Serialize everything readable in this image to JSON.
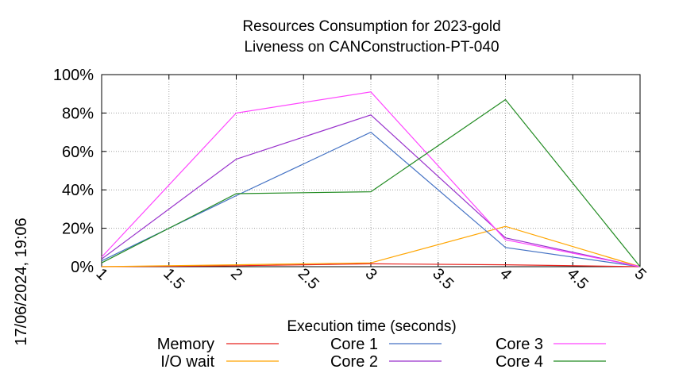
{
  "chart_data": {
    "type": "line",
    "title_lines": [
      "Resources Consumption for 2023-gold",
      "Liveness on CANConstruction-PT-040"
    ],
    "xlabel": "Execution time (seconds)",
    "ylabel": "",
    "side_label": "17/06/2024, 19:06",
    "xlim": [
      1,
      5
    ],
    "ylim": [
      0,
      100
    ],
    "x_ticks": [
      1,
      1.5,
      2,
      2.5,
      3,
      3.5,
      4,
      4.5,
      5
    ],
    "x_tick_labels": [
      "1",
      "1.5",
      "2",
      "2.5",
      "3",
      "3.5",
      "4",
      "4.5",
      "5"
    ],
    "y_ticks": [
      0,
      20,
      40,
      60,
      80,
      100
    ],
    "y_tick_labels": [
      "0%",
      "20%",
      "40%",
      "60%",
      "80%",
      "100%"
    ],
    "grid": true,
    "legend_position": "bottom",
    "series": [
      {
        "name": "Memory",
        "color": "#e8231e",
        "x": [
          1,
          2,
          3,
          4,
          5
        ],
        "values": [
          0,
          0.5,
          1.5,
          1,
          0
        ]
      },
      {
        "name": "I/O wait",
        "color": "#ffa500",
        "x": [
          1,
          2,
          3,
          4,
          5
        ],
        "values": [
          0,
          1,
          2,
          21,
          0
        ]
      },
      {
        "name": "Core 1",
        "color": "#4472c4",
        "x": [
          1,
          2,
          3,
          4,
          5
        ],
        "values": [
          3,
          37,
          70,
          10,
          0
        ]
      },
      {
        "name": "Core 2",
        "color": "#9932cc",
        "x": [
          1,
          2,
          3,
          4,
          5
        ],
        "values": [
          4,
          56,
          79,
          15,
          0
        ]
      },
      {
        "name": "Core 3",
        "color": "#ff44ff",
        "x": [
          1,
          2,
          3,
          4,
          5
        ],
        "values": [
          5,
          80,
          91,
          14,
          0
        ]
      },
      {
        "name": "Core 4",
        "color": "#228b22",
        "x": [
          1,
          2,
          3,
          4,
          5
        ],
        "values": [
          2,
          38,
          39,
          87,
          0
        ]
      }
    ]
  }
}
